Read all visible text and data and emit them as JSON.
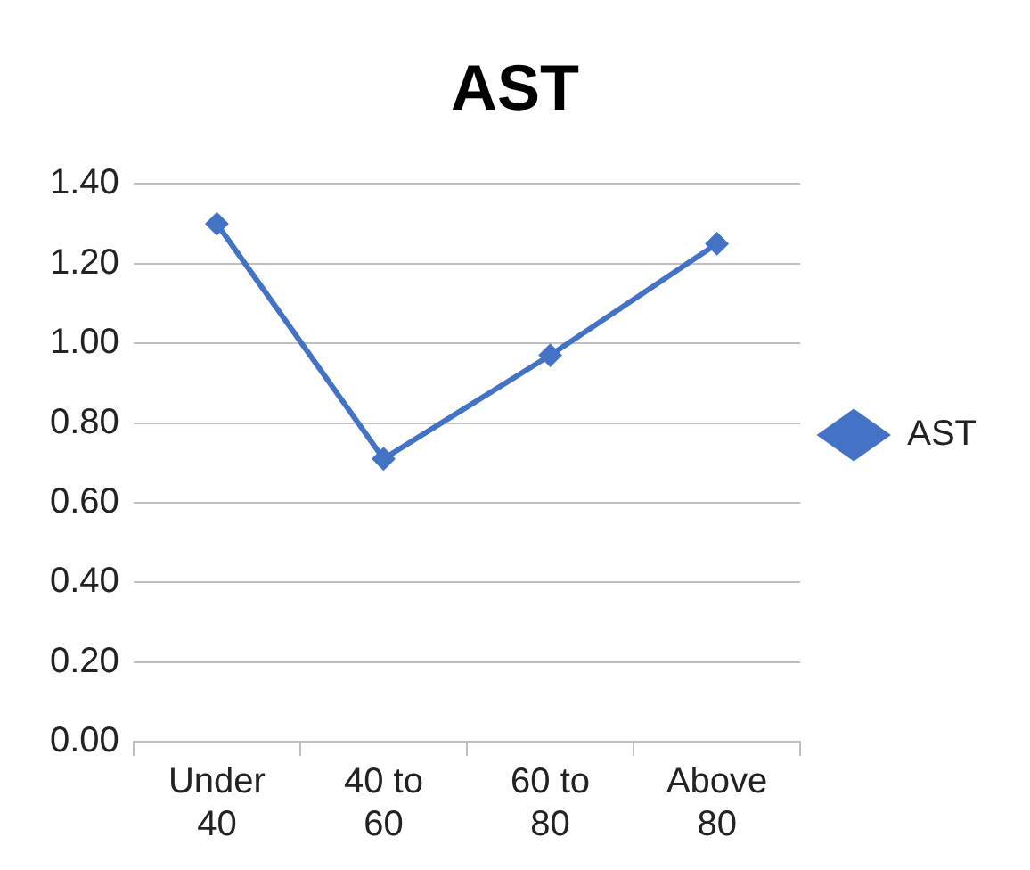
{
  "chart_data": {
    "type": "line",
    "title": "AST",
    "categories": [
      "Under 40",
      "40 to 60",
      "60 to 80",
      "Above 80"
    ],
    "series": [
      {
        "name": "AST",
        "color": "#4472c4",
        "values": [
          1.3,
          0.71,
          0.97,
          1.25
        ]
      }
    ],
    "ylim": [
      0,
      1.4
    ],
    "yticks": [
      {
        "value": 0,
        "label": "0.00"
      },
      {
        "value": 0.2,
        "label": "0.20"
      },
      {
        "value": 0.4,
        "label": "0.40"
      },
      {
        "value": 0.6,
        "label": "0.60"
      },
      {
        "value": 0.8,
        "label": "0.80"
      },
      {
        "value": 1.0,
        "label": "1.00"
      },
      {
        "value": 1.2,
        "label": "1.20"
      },
      {
        "value": 1.4,
        "label": "1.40"
      }
    ],
    "grid": "y",
    "legend": "right",
    "marker": "diamond",
    "line_style": "solid"
  }
}
